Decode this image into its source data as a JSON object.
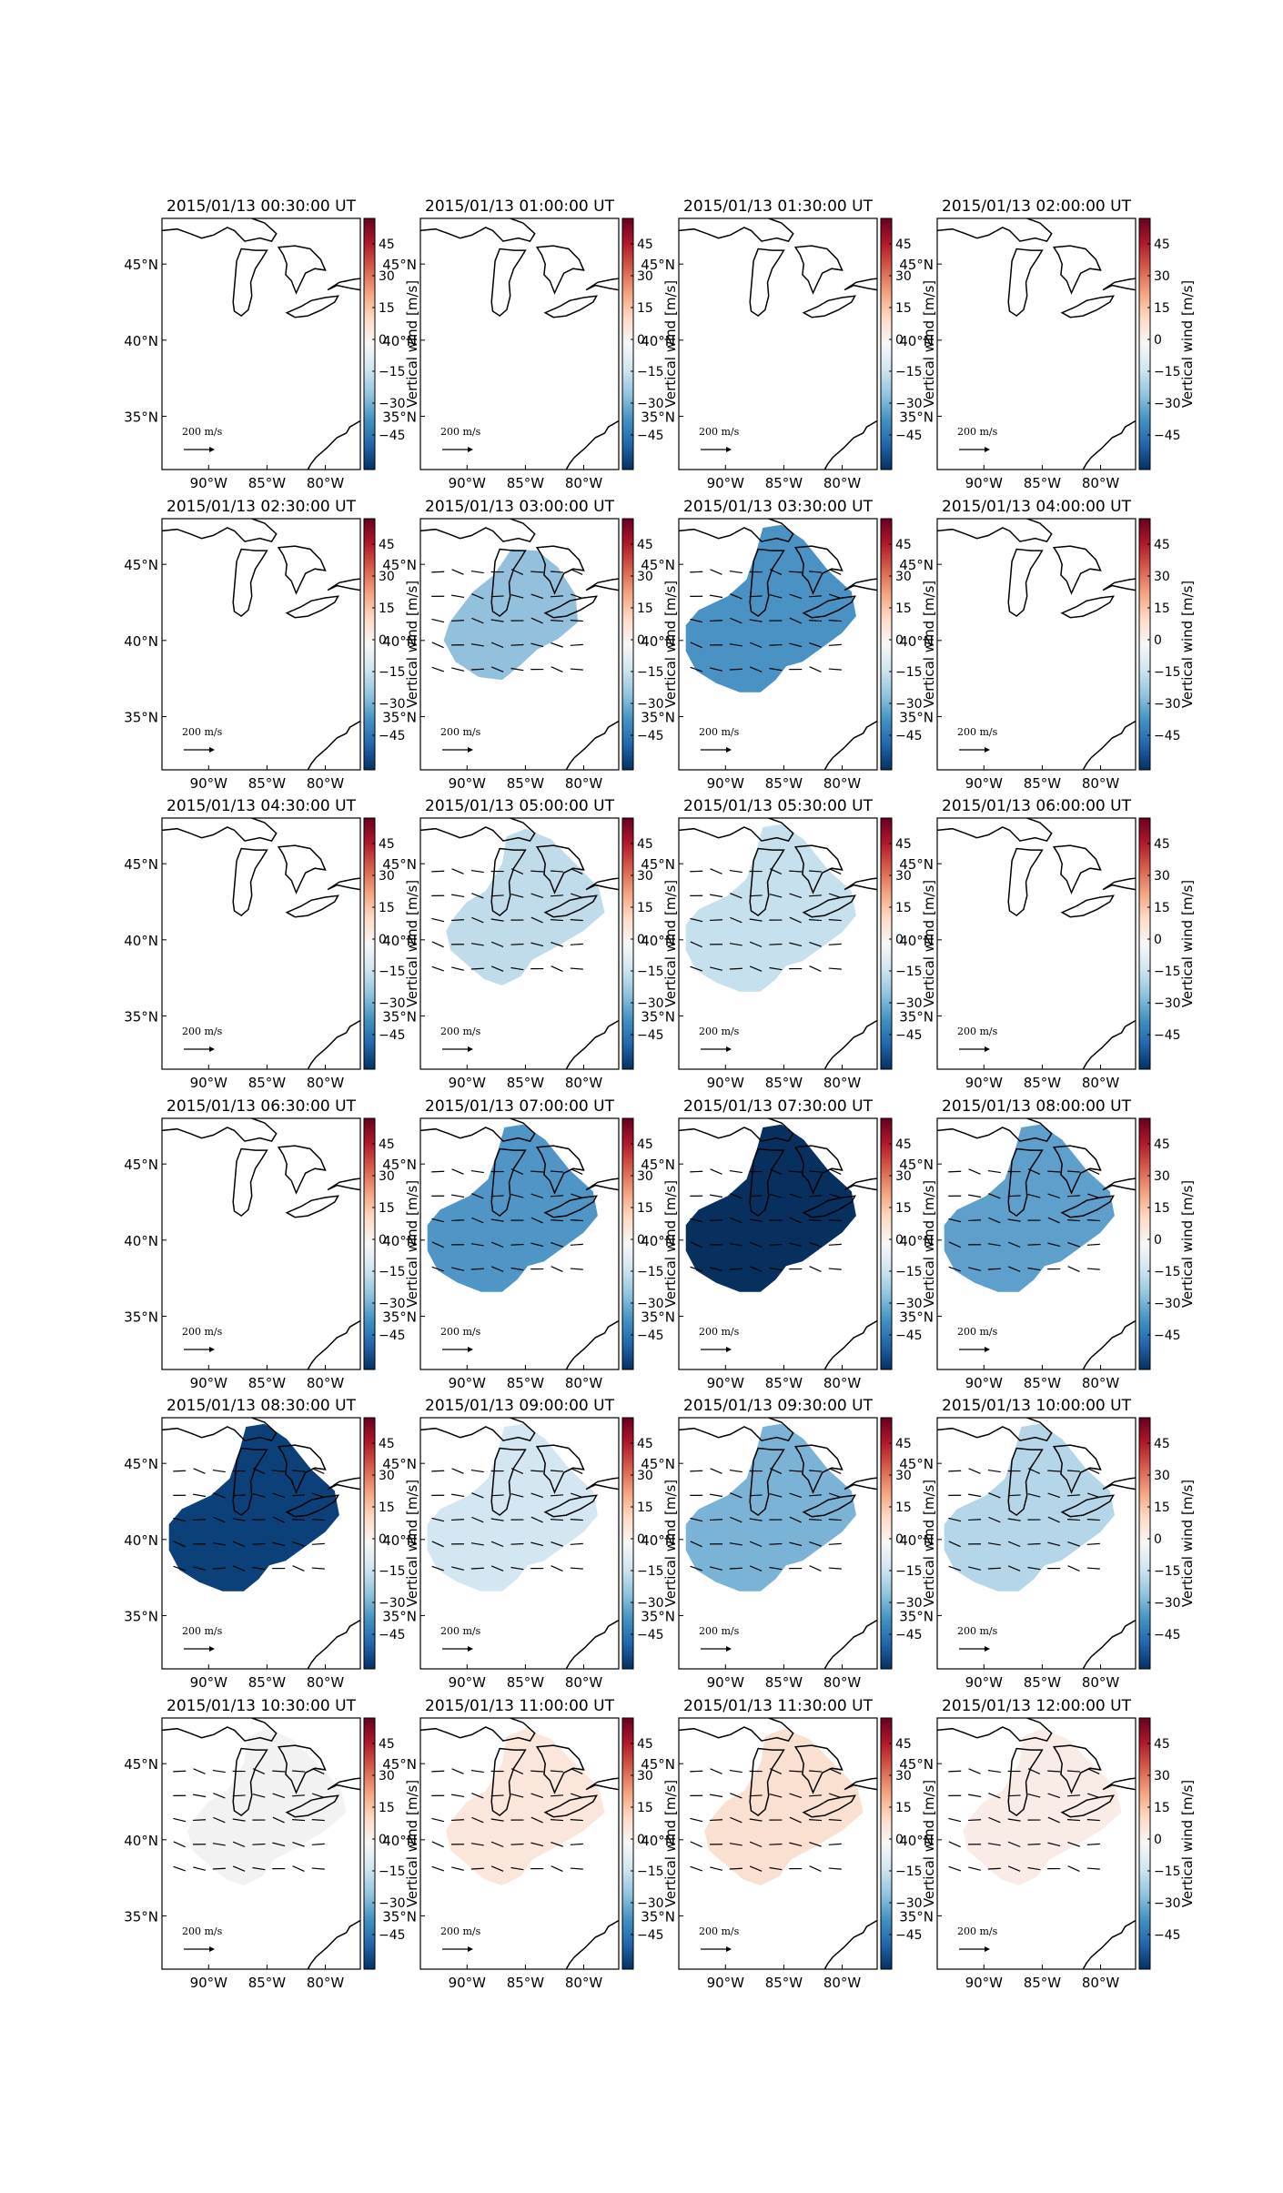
{
  "figure": {
    "colorbar_label": "Vertical wind [m/s]",
    "colorbar_ticks": [
      "45",
      "30",
      "15",
      "0",
      "−15",
      "−30",
      "−45"
    ],
    "lat_ticks": [
      "45°N",
      "40°N",
      "35°N"
    ],
    "lon_ticks": [
      "90°W",
      "85°W",
      "80°W"
    ],
    "scale_label": "200 m/s",
    "colormap": [
      "#053061",
      "#2166ac",
      "#4393c3",
      "#92c5de",
      "#d1e5f0",
      "#f7f7f7",
      "#fddbc7",
      "#f4a582",
      "#d6604d",
      "#b2182b",
      "#67001f"
    ],
    "outline_color": "#000000"
  },
  "panels": [
    {
      "title": "2015/01/13 00:30:00 UT",
      "has_data": false,
      "fill": null
    },
    {
      "title": "2015/01/13 01:00:00 UT",
      "has_data": false,
      "fill": null
    },
    {
      "title": "2015/01/13 01:30:00 UT",
      "has_data": false,
      "fill": null
    },
    {
      "title": "2015/01/13 02:00:00 UT",
      "has_data": false,
      "fill": null
    },
    {
      "title": "2015/01/13 02:30:00 UT",
      "has_data": false,
      "fill": null
    },
    {
      "title": "2015/01/13 03:00:00 UT",
      "has_data": true,
      "fill": "#92c0dd"
    },
    {
      "title": "2015/01/13 03:30:00 UT",
      "has_data": true,
      "fill": "#4a91c4"
    },
    {
      "title": "2015/01/13 04:00:00 UT",
      "has_data": false,
      "fill": null
    },
    {
      "title": "2015/01/13 04:30:00 UT",
      "has_data": false,
      "fill": null
    },
    {
      "title": "2015/01/13 05:00:00 UT",
      "has_data": true,
      "fill": "#c0dceb"
    },
    {
      "title": "2015/01/13 05:30:00 UT",
      "has_data": true,
      "fill": "#c6e0ee"
    },
    {
      "title": "2015/01/13 06:00:00 UT",
      "has_data": false,
      "fill": null
    },
    {
      "title": "2015/01/13 06:30:00 UT",
      "has_data": false,
      "fill": null
    },
    {
      "title": "2015/01/13 07:00:00 UT",
      "has_data": true,
      "fill": "#4f95c6"
    },
    {
      "title": "2015/01/13 07:30:00 UT",
      "has_data": true,
      "fill": "#08305e"
    },
    {
      "title": "2015/01/13 08:00:00 UT",
      "has_data": true,
      "fill": "#5e9fcc"
    },
    {
      "title": "2015/01/13 08:30:00 UT",
      "has_data": true,
      "fill": "#0c4078"
    },
    {
      "title": "2015/01/13 09:00:00 UT",
      "has_data": true,
      "fill": "#d4e6f1"
    },
    {
      "title": "2015/01/13 09:30:00 UT",
      "has_data": true,
      "fill": "#7bb3d6"
    },
    {
      "title": "2015/01/13 10:00:00 UT",
      "has_data": true,
      "fill": "#b4d6e8"
    },
    {
      "title": "2015/01/13 10:30:00 UT",
      "has_data": true,
      "fill": "#f2f2f2"
    },
    {
      "title": "2015/01/13 11:00:00 UT",
      "has_data": true,
      "fill": "#fbe6dc"
    },
    {
      "title": "2015/01/13 11:30:00 UT",
      "has_data": true,
      "fill": "#f9e0d0"
    },
    {
      "title": "2015/01/13 12:00:00 UT",
      "has_data": true,
      "fill": "#f9ece6"
    }
  ]
}
